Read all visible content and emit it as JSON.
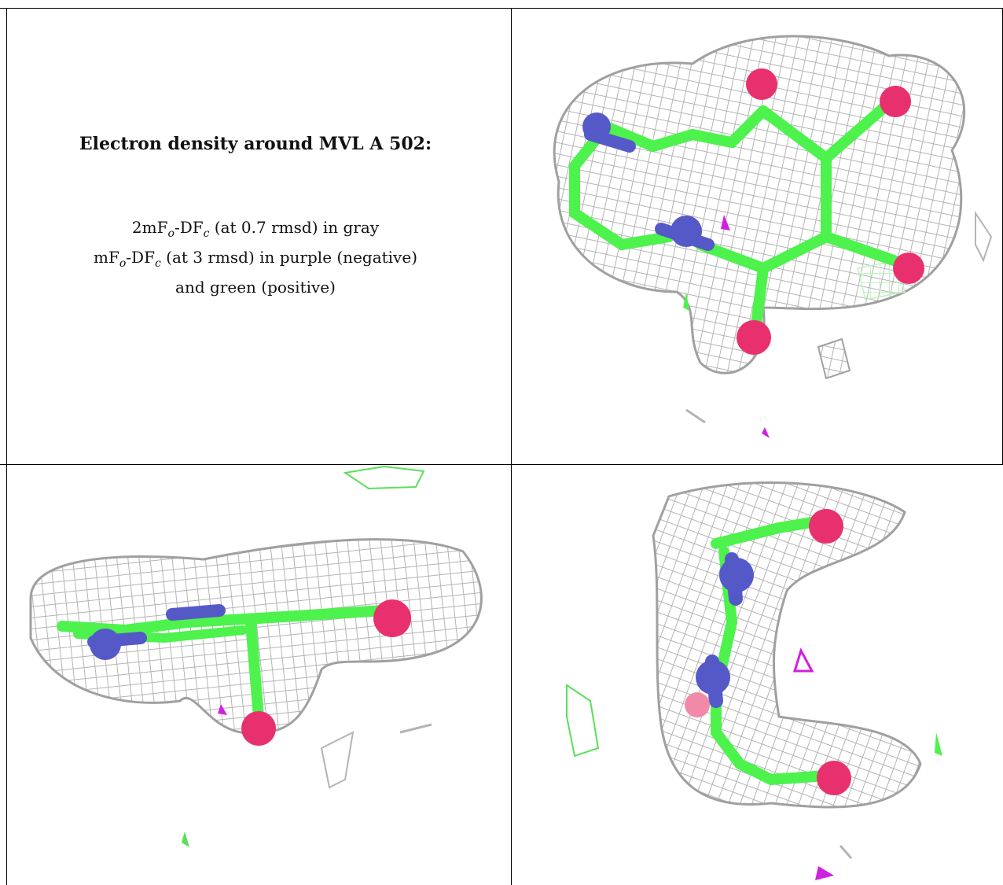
{
  "caption": {
    "title": "Electron density around MVL A 502:",
    "line1_prefix": "2mF",
    "line1_sub_o": "o",
    "line1_mid": "-DF",
    "line1_sub_c": "c",
    "line1_suffix": " (at 0.7 rmsd) in gray",
    "line2_prefix": "mF",
    "line2_sub_o": "o",
    "line2_mid": "-DF",
    "line2_sub_c": "c",
    "line2_suffix": " (at 3 rmsd) in purple (negative)",
    "line3": "and green (positive)"
  },
  "colors": {
    "mesh_gray": "#b4b4b4",
    "carbon_green": "#4df24d",
    "nitrogen_blue": "#5559c8",
    "oxygen_red": "#e8306f",
    "negative_purple": "#d020e0",
    "positive_green": "#59e059"
  }
}
